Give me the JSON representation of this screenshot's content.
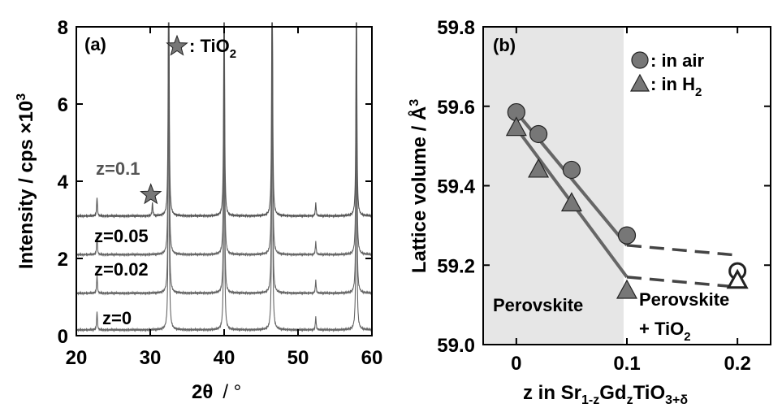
{
  "chart_data": [
    {
      "panel": "(a)",
      "type": "line",
      "xlabel_main": "2θ",
      "xlabel_unit": "/ °",
      "ylabel": "Intensity / cps ×10",
      "ylabel_exp": "3",
      "xlim": [
        20,
        60
      ],
      "ylim": [
        0,
        8
      ],
      "x_ticks": [
        "20",
        "30",
        "40",
        "50",
        "60"
      ],
      "y_ticks": [
        "0",
        "2",
        "4",
        "6",
        "8"
      ],
      "y_tick_values": [
        0,
        2,
        4,
        6,
        8
      ],
      "x_tick_values": [
        20,
        30,
        40,
        50,
        60
      ],
      "legend_star_label": ": TiO",
      "legend_star_sub": "2",
      "series": [
        {
          "label": "z=0",
          "baseline": 0.15
        },
        {
          "label": "z=0.02",
          "baseline": 1.1
        },
        {
          "label": "z=0.05",
          "baseline": 2.1
        },
        {
          "label": "z=0.1",
          "baseline": 3.1
        }
      ],
      "peaks": [
        {
          "two_theta": 22.8,
          "height": 0.5
        },
        {
          "two_theta": 32.5,
          "height": 9.0
        },
        {
          "two_theta": 40.0,
          "height": 7.6
        },
        {
          "two_theta": 46.5,
          "height": 9.0
        },
        {
          "two_theta": 52.4,
          "height": 0.35
        },
        {
          "two_theta": 57.9,
          "height": 7.2
        }
      ],
      "tio2_peak": {
        "two_theta": 30.3,
        "height": 0.35,
        "series_index": 3,
        "star_y": 3.65
      },
      "colors": {
        "top_series": "#555555",
        "other_series": "#666666",
        "star": "#777777"
      }
    },
    {
      "panel": "(b)",
      "type": "scatter",
      "xlabel": "z in Sr",
      "xlabel_sub1": "1-z",
      "xlabel_mid": "Gd",
      "xlabel_sub2": "z",
      "xlabel_end": "TiO",
      "xlabel_sub3": "3+δ",
      "ylabel": "Lattice volume / Å",
      "ylabel_exp": "3",
      "xlim": [
        -0.03,
        0.23
      ],
      "ylim": [
        59.0,
        59.8
      ],
      "x_ticks": [
        "0",
        "0.1",
        "0.2"
      ],
      "x_tick_values": [
        0,
        0.1,
        0.2
      ],
      "y_ticks": [
        "59.0",
        "59.2",
        "59.4",
        "59.6",
        "59.8"
      ],
      "y_tick_values": [
        59.0,
        59.2,
        59.4,
        59.6,
        59.8
      ],
      "region_left_label": "Perovskite",
      "region_right_label_1": "Perovskite",
      "region_right_label_2": "+ TiO",
      "region_right_sub": "2",
      "shaded_region_x": [
        -0.03,
        0.097
      ],
      "series": [
        {
          "name": ": in air",
          "marker": "circle",
          "x": [
            0,
            0.02,
            0.05,
            0.1
          ],
          "y": [
            59.585,
            59.53,
            59.44,
            59.275
          ],
          "open_x": [
            0.2
          ],
          "open_y": [
            59.185
          ],
          "fit_line": [
            [
              0,
              59.585
            ],
            [
              0.1,
              59.25
            ]
          ],
          "dashed_line": [
            [
              0.1,
              59.25
            ],
            [
              0.2,
              59.225
            ]
          ]
        },
        {
          "name": ": in H",
          "name_sub": "2",
          "marker": "triangle",
          "x": [
            0,
            0.02,
            0.05,
            0.1
          ],
          "y": [
            59.545,
            59.44,
            59.355,
            59.135
          ],
          "open_x": [
            0.2
          ],
          "open_y": [
            59.16
          ],
          "fit_line": [
            [
              0,
              59.545
            ],
            [
              0.1,
              59.17
            ]
          ],
          "dashed_line": [
            [
              0.1,
              59.17
            ],
            [
              0.2,
              59.145
            ]
          ]
        }
      ],
      "colors": {
        "marker_fill": "#777777",
        "line": "#666666",
        "dashed": "#444444",
        "shade": "#e6e6e6"
      }
    }
  ]
}
